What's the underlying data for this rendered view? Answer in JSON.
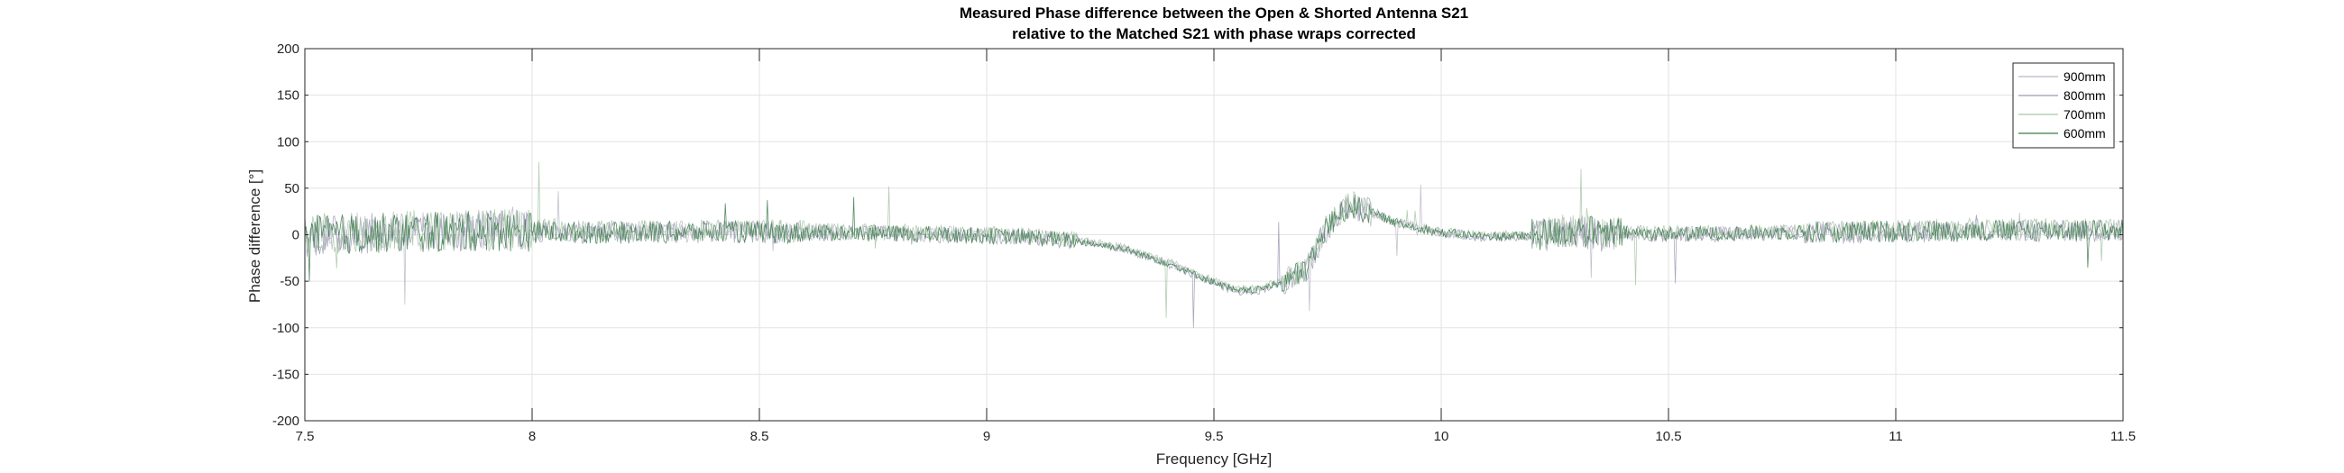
{
  "chart_data": {
    "type": "line",
    "title_line1": "Measured Phase difference between the Open & Shorted Antenna S21",
    "title_line2": "relative to the Matched S21 with phase wraps corrected",
    "xlabel": "Frequency [GHz]",
    "ylabel": "Phase difference [°]",
    "xlim": [
      7.5,
      11.5
    ],
    "ylim": [
      -200,
      200
    ],
    "xticks": [
      7.5,
      8,
      8.5,
      9,
      9.5,
      10,
      10.5,
      11,
      11.5
    ],
    "xtick_labels": [
      "7.5",
      "8",
      "8.5",
      "9",
      "9.5",
      "10",
      "10.5",
      "11",
      "11.5"
    ],
    "yticks": [
      -200,
      -150,
      -100,
      -50,
      0,
      50,
      100,
      150,
      200
    ],
    "ytick_labels": [
      "-200",
      "-150",
      "-100",
      "-50",
      "0",
      "50",
      "100",
      "150",
      "200"
    ],
    "grid": true,
    "legend_position": "top-right",
    "series": [
      {
        "name": "900mm",
        "color": "#b8b8c4",
        "x": [
          7.5,
          7.6,
          7.7,
          7.8,
          7.9,
          8.0,
          8.2,
          8.4,
          8.6,
          8.8,
          9.0,
          9.1,
          9.2,
          9.3,
          9.4,
          9.5,
          9.55,
          9.6,
          9.65,
          9.7,
          9.75,
          9.8,
          9.85,
          9.9,
          10.0,
          10.1,
          10.2,
          10.3,
          10.35,
          10.4,
          10.5,
          10.7,
          10.9,
          11.0,
          11.2,
          11.4,
          11.5
        ],
        "values": [
          0,
          2,
          4,
          3,
          6,
          5,
          3,
          4,
          3,
          2,
          0,
          -2,
          -6,
          -14,
          -30,
          -50,
          -60,
          -58,
          -50,
          -38,
          10,
          30,
          22,
          12,
          2,
          -2,
          -1,
          5,
          0,
          2,
          1,
          2,
          3,
          4,
          5,
          5,
          5
        ]
      },
      {
        "name": "800mm",
        "color": "#9a9ab4",
        "x": [
          7.5,
          7.6,
          7.7,
          7.8,
          7.9,
          8.0,
          8.2,
          8.4,
          8.6,
          8.8,
          9.0,
          9.1,
          9.2,
          9.3,
          9.4,
          9.5,
          9.55,
          9.6,
          9.65,
          9.7,
          9.75,
          9.8,
          9.85,
          9.9,
          10.0,
          10.1,
          10.2,
          10.3,
          10.35,
          10.4,
          10.5,
          10.7,
          10.9,
          11.0,
          11.2,
          11.4,
          11.5
        ],
        "values": [
          -2,
          0,
          3,
          2,
          5,
          4,
          2,
          3,
          2,
          1,
          -1,
          -3,
          -7,
          -15,
          -32,
          -52,
          -62,
          -60,
          -52,
          -40,
          8,
          32,
          24,
          14,
          3,
          -3,
          -2,
          4,
          -1,
          1,
          0,
          1,
          2,
          3,
          4,
          4,
          4
        ]
      },
      {
        "name": "700mm",
        "color": "#a6c6a6",
        "x": [
          7.5,
          7.6,
          7.7,
          7.8,
          7.9,
          8.0,
          8.2,
          8.4,
          8.6,
          8.8,
          9.0,
          9.1,
          9.2,
          9.3,
          9.4,
          9.5,
          9.55,
          9.6,
          9.65,
          9.7,
          9.75,
          9.8,
          9.85,
          9.9,
          10.0,
          10.1,
          10.2,
          10.3,
          10.35,
          10.4,
          10.5,
          10.7,
          10.9,
          11.0,
          11.2,
          11.4,
          11.5
        ],
        "values": [
          1,
          3,
          5,
          4,
          7,
          6,
          4,
          5,
          4,
          3,
          1,
          -1,
          -5,
          -13,
          -29,
          -49,
          -59,
          -57,
          -49,
          -37,
          12,
          34,
          24,
          13,
          3,
          -1,
          0,
          6,
          1,
          3,
          2,
          3,
          4,
          5,
          6,
          6,
          6
        ]
      },
      {
        "name": "600mm",
        "color": "#3c7a4c",
        "x": [
          7.5,
          7.6,
          7.7,
          7.8,
          7.9,
          8.0,
          8.2,
          8.4,
          8.6,
          8.8,
          9.0,
          9.1,
          9.2,
          9.3,
          9.4,
          9.5,
          9.55,
          9.6,
          9.65,
          9.7,
          9.75,
          9.8,
          9.85,
          9.9,
          10.0,
          10.1,
          10.2,
          10.3,
          10.35,
          10.4,
          10.5,
          10.7,
          10.9,
          11.0,
          11.2,
          11.4,
          11.5
        ],
        "values": [
          -1,
          1,
          2,
          3,
          4,
          3,
          2,
          3,
          2,
          1,
          -1,
          -3,
          -7,
          -15,
          -31,
          -51,
          -61,
          -59,
          -51,
          -39,
          9,
          31,
          23,
          13,
          2,
          -2,
          -1,
          5,
          0,
          2,
          1,
          2,
          3,
          4,
          4,
          5,
          5
        ]
      }
    ]
  }
}
